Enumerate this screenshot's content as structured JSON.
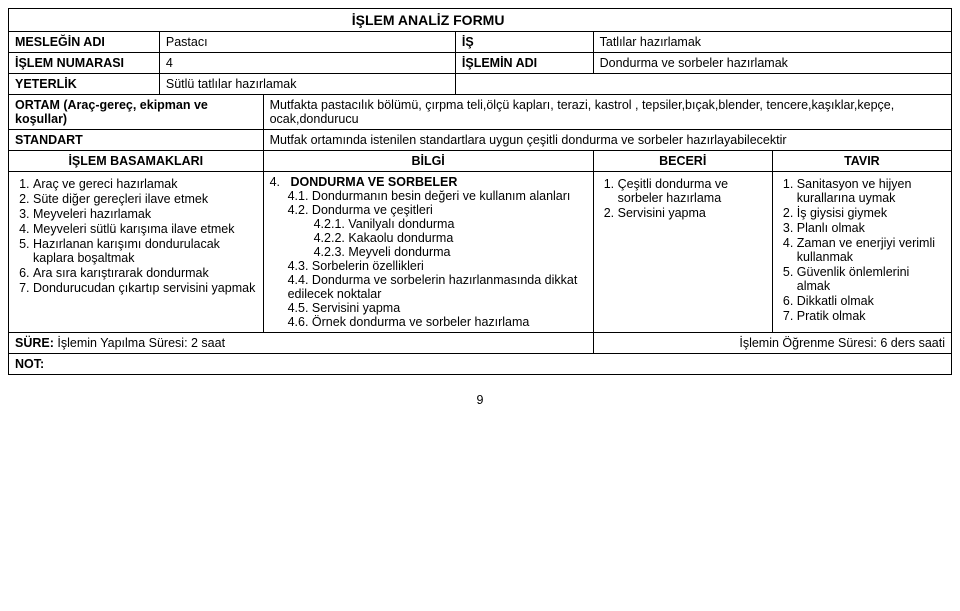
{
  "form_title": "İŞLEM ANALİZ FORMU",
  "labels": {
    "meslegin_adi": "MESLEĞİN ADI",
    "is": "İŞ",
    "islem_no": "İŞLEM NUMARASI",
    "islemin_adi": "İŞLEMİN ADI",
    "yeterlik": "YETERLİK",
    "ortam": "ORTAM (Araç-gereç, ekipman ve koşullar)",
    "standart": "STANDART",
    "basamaklar": "İŞLEM BASAMAKLARI",
    "bilgi": "BİLGİ",
    "beceri": "BECERİ",
    "tavir": "TAVIR",
    "sure": "SÜRE:",
    "not": "NOT:"
  },
  "values": {
    "meslegin_adi": "Pastacı",
    "is": "Tatlılar hazırlamak",
    "islem_no": "4",
    "islemin_adi": "Dondurma ve sorbeler hazırlamak",
    "yeterlik": "Sütlü tatlılar hazırlamak",
    "ortam": "Mutfakta pastacılık bölümü, çırpma   teli,ölçü kapları,  terazi, kastrol , tepsiler,bıçak,blender, tencere,kaşıklar,kepçe, ocak,dondurucu",
    "standart": "Mutfak ortamında istenilen standartlara uygun çeşitli dondurma ve sorbeler hazırlayabilecektir"
  },
  "basamaklar": [
    "Araç ve gereci hazırlamak",
    "Süte diğer gereçleri ilave etmek",
    "Meyveleri hazırlamak",
    "Meyveleri sütlü karışıma ilave etmek",
    "Hazırlanan karışımı dondurulacak kaplara boşaltmak",
    "Ara sıra karıştırarak dondurmak",
    "Dondurucudan çıkartıp servisini yapmak"
  ],
  "bilgi": {
    "head_num": "4.",
    "head": "DONDURMA VE SORBELER",
    "items": [
      "4.1. Dondurmanın besin değeri ve kullanım alanları",
      "4.2. Dondurma ve çeşitleri",
      "4.2.1.  Vanilyalı dondurma",
      "4.2.2.  Kakaolu dondurma",
      "4.2.3.  Meyveli dondurma",
      "4.3. Sorbelerin özellikleri",
      "4.4. Dondurma ve sorbelerin hazırlanmasında dikkat edilecek noktalar",
      "4.5. Servisini yapma",
      "4.6. Örnek dondurma ve sorbeler hazırlama"
    ]
  },
  "beceri": [
    "Çeşitli dondurma ve sorbeler hazırlama",
    "Servisini yapma"
  ],
  "tavir": [
    "Sanitasyon ve hijyen kurallarına uymak",
    "İş giysisi giymek",
    "Planlı olmak",
    "Zaman ve enerjiyi verimli kullanmak",
    "Güvenlik önlemlerini almak",
    "Dikkatli olmak",
    "Pratik olmak"
  ],
  "sure_left": "İşlemin Yapılma Süresi: 2 saat",
  "sure_right": "İşlemin Öğrenme Süresi: 6 ders saati",
  "page_number": "9"
}
